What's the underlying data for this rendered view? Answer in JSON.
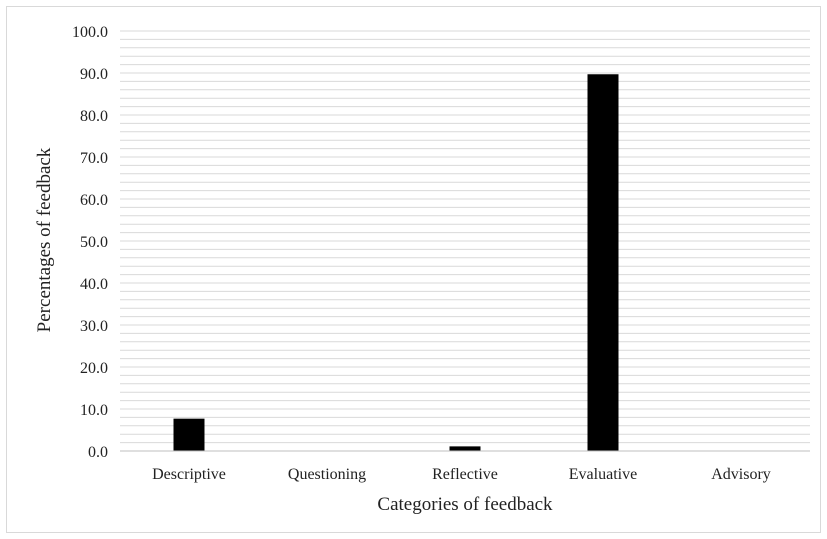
{
  "chart_data": {
    "type": "bar",
    "title": "",
    "xlabel": "Categories of feedback",
    "ylabel": "Percentages of feedback",
    "categories": [
      "Descriptive",
      "Questioning",
      "Reflective",
      "Evaluative",
      "Advisory"
    ],
    "values": [
      7.7,
      0.0,
      1.1,
      89.7,
      0.0
    ],
    "ylim": [
      0,
      100
    ],
    "yticks": [
      "0.0",
      "10.0",
      "20.0",
      "30.0",
      "40.0",
      "50.0",
      "60.0",
      "70.0",
      "80.0",
      "90.0",
      "100.0"
    ],
    "grid": true,
    "legend": "none",
    "colors": {
      "bar": "#000000",
      "grid": "#d9d9d9",
      "axis": "#bfbfbf",
      "text": "#222222"
    }
  }
}
